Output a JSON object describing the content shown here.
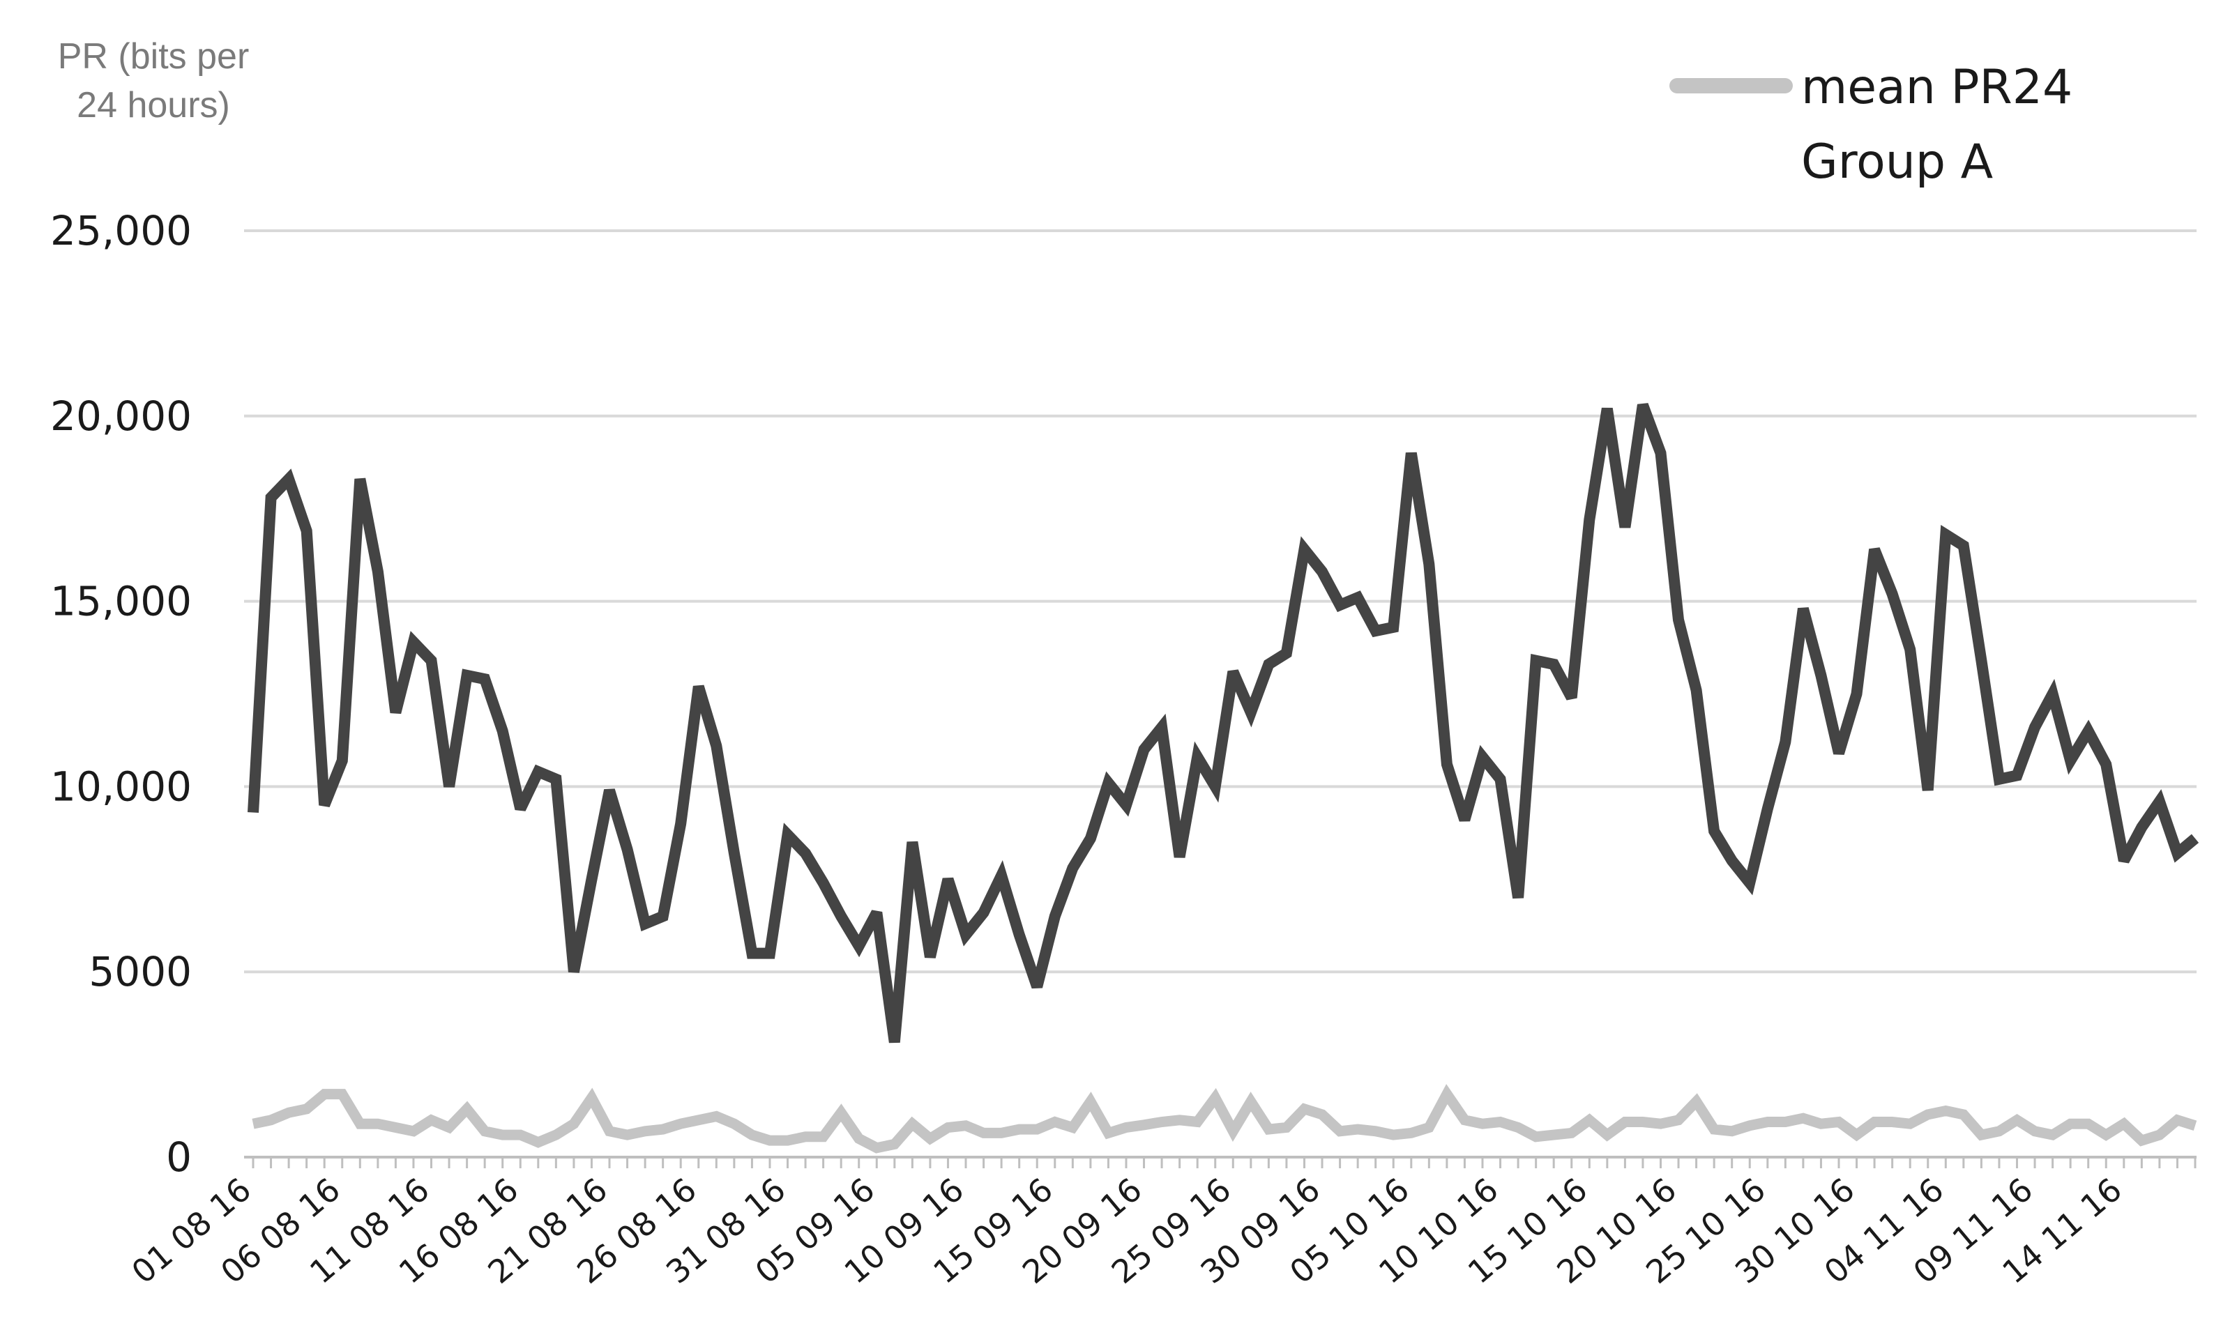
{
  "chart_data": {
    "type": "line",
    "ylabel": [
      "PR (bits per",
      "24 hours)"
    ],
    "ylim": [
      0,
      25000
    ],
    "yticks": [
      {
        "value": 0,
        "label": "0"
      },
      {
        "value": 5000,
        "label": "5000"
      },
      {
        "value": 10000,
        "label": "10,000"
      },
      {
        "value": 15000,
        "label": "15,000"
      },
      {
        "value": 20000,
        "label": "20,000"
      },
      {
        "value": 25000,
        "label": "25,000"
      }
    ],
    "grid": true,
    "legend_position": "top-right",
    "x_tick_labels": [
      "01 08 16",
      "06 08 16",
      "11 08 16",
      "16 08 16",
      "21 08 16",
      "26 08 16",
      "31 08 16",
      "05 09 16",
      "10 09 16",
      "15 09 16",
      "20 09 16",
      "25 09 16",
      "30 09 16",
      "05 10 16",
      "10 10 16",
      "15 10 16",
      "20 10 16",
      "25 10 16",
      "30 10 16",
      "04 11 16",
      "09 11 16",
      "14 11 16"
    ],
    "x_tick_every": 5,
    "series": [
      {
        "name": "",
        "color": "#444444",
        "values": [
          9300,
          17800,
          18300,
          16900,
          9500,
          10700,
          18300,
          15800,
          12000,
          13900,
          13400,
          10000,
          13000,
          12900,
          11500,
          9400,
          10400,
          10200,
          5000,
          7500,
          9900,
          8300,
          6300,
          6500,
          9000,
          12700,
          11100,
          8200,
          5500,
          5500,
          8700,
          8200,
          7400,
          6500,
          5700,
          6600,
          3100,
          8500,
          5400,
          7500,
          6000,
          6600,
          7600,
          6000,
          4600,
          6500,
          7800,
          8600,
          10100,
          9500,
          11000,
          11600,
          8100,
          10800,
          10000,
          13100,
          12000,
          13300,
          13600,
          16400,
          15800,
          14900,
          15100,
          14200,
          14300,
          19000,
          16000,
          10600,
          9100,
          10800,
          10200,
          7000,
          13400,
          13300,
          12400,
          17200,
          20200,
          17000,
          20300,
          19000,
          14500,
          12600,
          8800,
          8000,
          7400,
          9400,
          11200,
          14800,
          13000,
          10900,
          12500,
          16400,
          15200,
          13700,
          9900,
          16800,
          16500,
          13400,
          10200,
          10300,
          11600,
          12500,
          10700,
          11500,
          10600,
          8000,
          8900,
          9600,
          8200,
          8600
        ]
      },
      {
        "name": "mean PR24 Group A",
        "legend_lines": [
          "mean PR24",
          "Group A"
        ],
        "color": "#c4c4c4",
        "values": [
          900,
          1000,
          1200,
          1300,
          1700,
          1700,
          900,
          900,
          800,
          700,
          1000,
          800,
          1300,
          700,
          600,
          600,
          400,
          600,
          900,
          1600,
          700,
          600,
          700,
          750,
          900,
          1000,
          1100,
          900,
          600,
          450,
          450,
          550,
          550,
          1200,
          500,
          250,
          350,
          900,
          500,
          800,
          850,
          650,
          650,
          750,
          750,
          950,
          800,
          1500,
          650,
          800,
          870,
          950,
          1000,
          950,
          1600,
          700,
          1500,
          750,
          800,
          1300,
          1150,
          700,
          750,
          700,
          600,
          650,
          800,
          1700,
          1000,
          900,
          950,
          800,
          550,
          600,
          650,
          1000,
          600,
          950,
          950,
          900,
          1000,
          1500,
          750,
          700,
          850,
          950,
          950,
          1050,
          900,
          950,
          600,
          950,
          950,
          900,
          1150,
          1250,
          1150,
          600,
          700,
          1000,
          700,
          600,
          900,
          900,
          600,
          900,
          450,
          600,
          1000,
          850
        ]
      }
    ]
  }
}
